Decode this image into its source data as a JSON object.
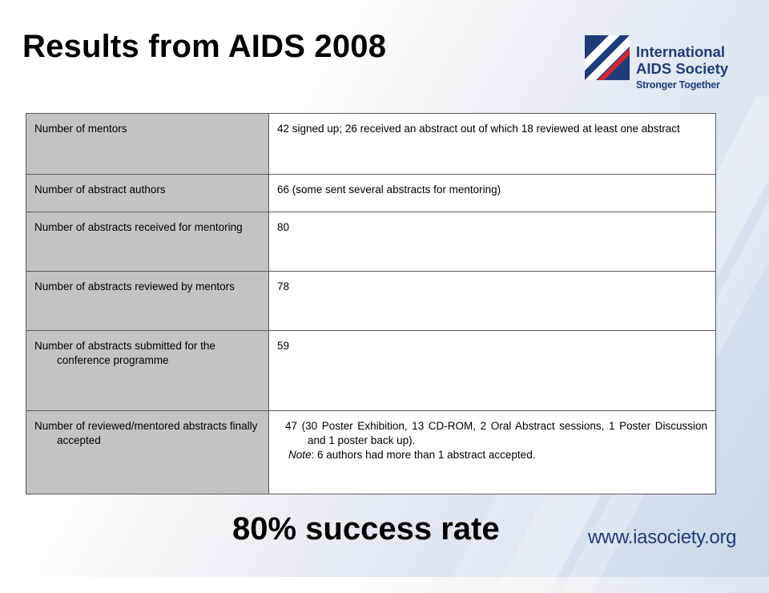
{
  "slide": {
    "title": "Results from AIDS 2008",
    "success_rate": "80% success rate",
    "website": "www.iasociety.org"
  },
  "logo": {
    "line1": "International",
    "line2": "AIDS Society",
    "tagline": "Stronger Together",
    "colors": {
      "blue": "#1f3c7a",
      "red": "#d7262e"
    }
  },
  "table": {
    "rows": [
      {
        "label": "Number of mentors",
        "value": "42 signed up; 26 received an abstract out of which 18 reviewed at least one abstract"
      },
      {
        "label": "Number of abstract authors",
        "value": "66 (some sent several abstracts for mentoring)"
      },
      {
        "label": "Number of abstracts received for mentoring",
        "value": "80"
      },
      {
        "label": "Number of abstracts reviewed by mentors",
        "value": "78"
      },
      {
        "label": "Number of abstracts submitted for the conference programme",
        "value": "59"
      },
      {
        "label": "Number of reviewed/mentored abstracts finally accepted",
        "value": "47 (30 Poster Exhibition, 13 CD-ROM, 2 Oral Abstract sessions, 1 Poster Discussion and 1 poster back up).",
        "note_label": "Note",
        "note_text": ": 6 authors had more than 1 abstract accepted."
      }
    ]
  }
}
